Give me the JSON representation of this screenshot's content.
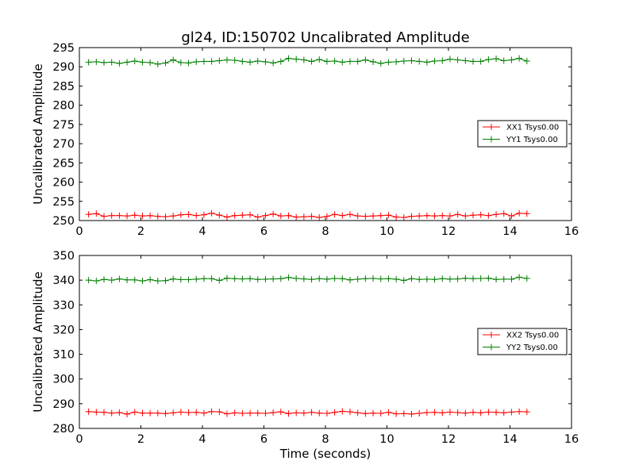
{
  "chart_data": [
    {
      "type": "line",
      "title": "gl24, ID:150702 Uncalibrated Amplitude",
      "xlabel": "",
      "ylabel": "Uncalibrated Amplitude",
      "xlim": [
        0,
        16
      ],
      "ylim": [
        250,
        295
      ],
      "xticks": [
        0,
        2,
        4,
        6,
        8,
        10,
        12,
        14,
        16
      ],
      "yticks": [
        250,
        255,
        260,
        265,
        270,
        275,
        280,
        285,
        290,
        295
      ],
      "legend": "center-right",
      "x": [
        0.3,
        0.55,
        0.8,
        1.05,
        1.3,
        1.55,
        1.8,
        2.05,
        2.3,
        2.55,
        2.8,
        3.05,
        3.3,
        3.55,
        3.8,
        4.05,
        4.3,
        4.55,
        4.8,
        5.05,
        5.3,
        5.55,
        5.8,
        6.05,
        6.3,
        6.55,
        6.8,
        7.05,
        7.3,
        7.55,
        7.8,
        8.05,
        8.3,
        8.55,
        8.8,
        9.05,
        9.3,
        9.55,
        9.8,
        10.05,
        10.3,
        10.55,
        10.8,
        11.05,
        11.3,
        11.55,
        11.8,
        12.05,
        12.3,
        12.55,
        12.8,
        13.05,
        13.3,
        13.55,
        13.8,
        14.05,
        14.3,
        14.55
      ],
      "series": [
        {
          "name": "XX1 Tsys0.00",
          "color": "#ff0000",
          "values": [
            251.6,
            251.8,
            251.1,
            251.3,
            251.3,
            251.2,
            251.4,
            251.2,
            251.3,
            251.1,
            251.0,
            251.2,
            251.5,
            251.6,
            251.3,
            251.5,
            251.9,
            251.4,
            250.9,
            251.3,
            251.4,
            251.5,
            250.9,
            251.3,
            251.7,
            251.2,
            251.3,
            250.9,
            251.0,
            251.1,
            250.8,
            251.1,
            251.6,
            251.3,
            251.6,
            251.2,
            251.1,
            251.2,
            251.3,
            251.4,
            250.9,
            250.8,
            251.1,
            251.2,
            251.3,
            251.2,
            251.3,
            251.2,
            251.6,
            251.2,
            251.4,
            251.5,
            251.3,
            251.6,
            251.8,
            251.2,
            251.9,
            251.8
          ]
        },
        {
          "name": "YY1 Tsys0.00",
          "color": "#008000",
          "values": [
            291.2,
            291.3,
            291.1,
            291.2,
            290.9,
            291.2,
            291.5,
            291.2,
            291.1,
            290.7,
            291.0,
            291.8,
            291.1,
            291.0,
            291.3,
            291.4,
            291.4,
            291.6,
            291.8,
            291.7,
            291.4,
            291.2,
            291.5,
            291.3,
            291.0,
            291.4,
            292.2,
            292.0,
            291.8,
            291.4,
            291.9,
            291.4,
            291.5,
            291.2,
            291.4,
            291.4,
            291.8,
            291.3,
            290.9,
            291.2,
            291.3,
            291.5,
            291.6,
            291.4,
            291.2,
            291.5,
            291.6,
            292.0,
            291.8,
            291.6,
            291.4,
            291.4,
            291.9,
            292.1,
            291.6,
            291.8,
            292.2,
            291.5
          ]
        }
      ]
    },
    {
      "type": "line",
      "title": "",
      "xlabel": "Time (seconds)",
      "ylabel": "Uncalibrated Amplitude",
      "xlim": [
        0,
        16
      ],
      "ylim": [
        280,
        350
      ],
      "xticks": [
        0,
        2,
        4,
        6,
        8,
        10,
        12,
        14,
        16
      ],
      "yticks": [
        280,
        290,
        300,
        310,
        320,
        330,
        340,
        350
      ],
      "legend": "center-right",
      "x": [
        0.3,
        0.55,
        0.8,
        1.05,
        1.3,
        1.55,
        1.8,
        2.05,
        2.3,
        2.55,
        2.8,
        3.05,
        3.3,
        3.55,
        3.8,
        4.05,
        4.3,
        4.55,
        4.8,
        5.05,
        5.3,
        5.55,
        5.8,
        6.05,
        6.3,
        6.55,
        6.8,
        7.05,
        7.3,
        7.55,
        7.8,
        8.05,
        8.3,
        8.55,
        8.8,
        9.05,
        9.3,
        9.55,
        9.8,
        10.05,
        10.3,
        10.55,
        10.8,
        11.05,
        11.3,
        11.55,
        11.8,
        12.05,
        12.3,
        12.55,
        12.8,
        13.05,
        13.3,
        13.55,
        13.8,
        14.05,
        14.3,
        14.55
      ],
      "series": [
        {
          "name": "XX2 Tsys0.00",
          "color": "#ff0000",
          "values": [
            286.8,
            286.6,
            286.5,
            286.2,
            286.4,
            285.8,
            286.6,
            286.2,
            286.2,
            286.2,
            286.0,
            286.3,
            286.6,
            286.4,
            286.5,
            286.2,
            286.8,
            286.7,
            285.9,
            286.3,
            286.1,
            286.2,
            286.2,
            286.1,
            286.4,
            286.7,
            286.0,
            286.3,
            286.2,
            286.5,
            286.2,
            286.1,
            286.5,
            286.9,
            286.7,
            286.3,
            286.0,
            286.2,
            286.1,
            286.5,
            285.9,
            286.0,
            285.8,
            286.1,
            286.4,
            286.5,
            286.3,
            286.6,
            286.4,
            286.2,
            286.5,
            286.3,
            286.6,
            286.5,
            286.3,
            286.6,
            286.8,
            286.7
          ]
        },
        {
          "name": "YY2 Tsys0.00",
          "color": "#008000",
          "values": [
            340.0,
            339.7,
            340.3,
            340.0,
            340.5,
            340.1,
            340.1,
            339.7,
            340.2,
            339.7,
            339.8,
            340.5,
            340.2,
            340.2,
            340.4,
            340.6,
            340.6,
            339.9,
            340.8,
            340.6,
            340.5,
            340.6,
            340.3,
            340.4,
            340.5,
            340.6,
            341.1,
            340.7,
            340.5,
            340.3,
            340.6,
            340.4,
            340.7,
            340.6,
            340.1,
            340.4,
            340.6,
            340.7,
            340.5,
            340.6,
            340.4,
            339.9,
            340.6,
            340.3,
            340.4,
            340.3,
            340.6,
            340.4,
            340.5,
            340.8,
            340.6,
            340.7,
            340.8,
            340.3,
            340.4,
            340.4,
            341.2,
            340.7
          ]
        }
      ]
    }
  ]
}
